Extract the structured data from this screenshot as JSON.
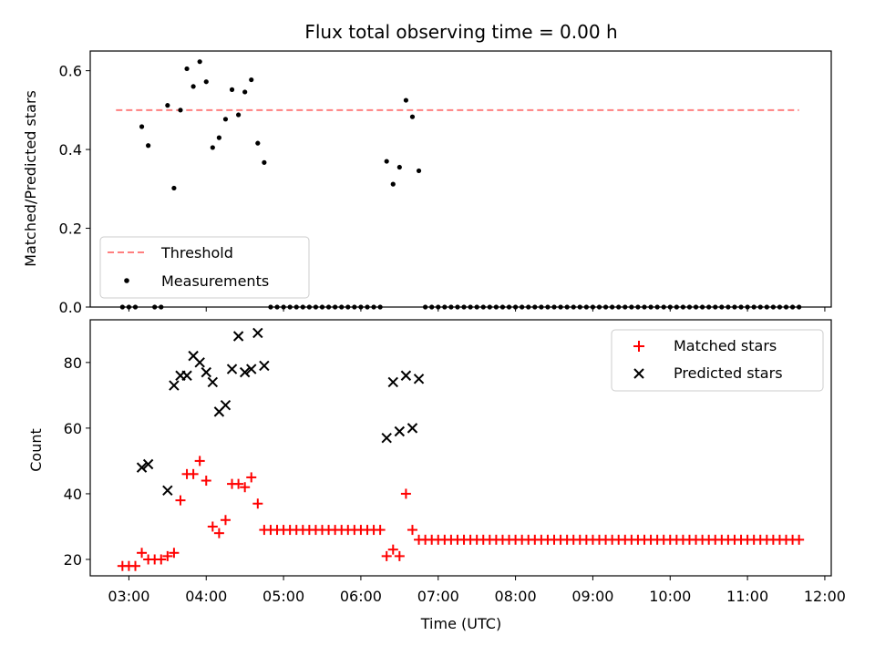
{
  "chart_data": [
    {
      "type": "scatter",
      "title": "Flux total observing time = 0.00 h",
      "ylabel": "Matched/Predicted stars",
      "xlim": [
        "02:30",
        "12:05"
      ],
      "ylim": [
        0,
        0.65
      ],
      "yticks": [
        "0.0",
        "0.2",
        "0.4",
        "0.6"
      ],
      "grid": false,
      "legend_position": "lower-left",
      "threshold": {
        "name": "Threshold",
        "value": 0.5,
        "x_start": "02:50",
        "x_end": "11:40",
        "color": "#ff7f7f",
        "style": "dashed"
      },
      "series": [
        {
          "name": "Measurements",
          "color": "#000000",
          "points": [
            [
              "02:55",
              0
            ],
            [
              "03:00",
              0
            ],
            [
              "03:05",
              0
            ],
            [
              "03:10",
              0.458
            ],
            [
              "03:15",
              0.41
            ],
            [
              "03:20",
              0
            ],
            [
              "03:25",
              0
            ],
            [
              "03:30",
              0.512
            ],
            [
              "03:35",
              0.302
            ],
            [
              "03:40",
              0.5
            ],
            [
              "03:45",
              0.605
            ],
            [
              "03:50",
              0.56
            ],
            [
              "03:55",
              0.623
            ],
            [
              "04:00",
              0.572
            ],
            [
              "04:05",
              0.405
            ],
            [
              "04:10",
              0.43
            ],
            [
              "04:15",
              0.477
            ],
            [
              "04:20",
              0.552
            ],
            [
              "04:25",
              0.488
            ],
            [
              "04:30",
              0.546
            ],
            [
              "04:35",
              0.577
            ],
            [
              "04:40",
              0.416
            ],
            [
              "04:45",
              0.367
            ],
            [
              "04:50",
              0
            ],
            [
              "04:55",
              0
            ],
            [
              "05:00",
              0
            ],
            [
              "05:05",
              0
            ],
            [
              "05:10",
              0
            ],
            [
              "05:15",
              0
            ],
            [
              "05:20",
              0
            ],
            [
              "05:25",
              0
            ],
            [
              "05:30",
              0
            ],
            [
              "05:35",
              0
            ],
            [
              "05:40",
              0
            ],
            [
              "05:45",
              0
            ],
            [
              "05:50",
              0
            ],
            [
              "05:55",
              0
            ],
            [
              "06:00",
              0
            ],
            [
              "06:05",
              0
            ],
            [
              "06:10",
              0
            ],
            [
              "06:15",
              0
            ],
            [
              "06:20",
              0.37
            ],
            [
              "06:25",
              0.312
            ],
            [
              "06:30",
              0.355
            ],
            [
              "06:35",
              0.525
            ],
            [
              "06:40",
              0.483
            ],
            [
              "06:45",
              0.346
            ],
            [
              "06:50",
              0
            ],
            [
              "06:55",
              0
            ],
            [
              "07:00",
              0
            ],
            [
              "07:05",
              0
            ],
            [
              "07:10",
              0
            ],
            [
              "07:15",
              0
            ],
            [
              "07:20",
              0
            ],
            [
              "07:25",
              0
            ],
            [
              "07:30",
              0
            ],
            [
              "07:35",
              0
            ],
            [
              "07:40",
              0
            ],
            [
              "07:45",
              0
            ],
            [
              "07:50",
              0
            ],
            [
              "07:55",
              0
            ],
            [
              "08:00",
              0
            ],
            [
              "08:05",
              0
            ],
            [
              "08:10",
              0
            ],
            [
              "08:15",
              0
            ],
            [
              "08:20",
              0
            ],
            [
              "08:25",
              0
            ],
            [
              "08:30",
              0
            ],
            [
              "08:35",
              0
            ],
            [
              "08:40",
              0
            ],
            [
              "08:45",
              0
            ],
            [
              "08:50",
              0
            ],
            [
              "08:55",
              0
            ],
            [
              "09:00",
              0
            ],
            [
              "09:05",
              0
            ],
            [
              "09:10",
              0
            ],
            [
              "09:15",
              0
            ],
            [
              "09:20",
              0
            ],
            [
              "09:25",
              0
            ],
            [
              "09:30",
              0
            ],
            [
              "09:35",
              0
            ],
            [
              "09:40",
              0
            ],
            [
              "09:45",
              0
            ],
            [
              "09:50",
              0
            ],
            [
              "09:55",
              0
            ],
            [
              "10:00",
              0
            ],
            [
              "10:05",
              0
            ],
            [
              "10:10",
              0
            ],
            [
              "10:15",
              0
            ],
            [
              "10:20",
              0
            ],
            [
              "10:25",
              0
            ],
            [
              "10:30",
              0
            ],
            [
              "10:35",
              0
            ],
            [
              "10:40",
              0
            ],
            [
              "10:45",
              0
            ],
            [
              "10:50",
              0
            ],
            [
              "10:55",
              0
            ],
            [
              "11:00",
              0
            ],
            [
              "11:05",
              0
            ],
            [
              "11:10",
              0
            ],
            [
              "11:15",
              0
            ],
            [
              "11:20",
              0
            ],
            [
              "11:25",
              0
            ],
            [
              "11:30",
              0
            ],
            [
              "11:35",
              0
            ],
            [
              "11:40",
              0
            ]
          ]
        }
      ]
    },
    {
      "type": "scatter",
      "xlabel": "Time (UTC)",
      "ylabel": "Count",
      "xlim": [
        "02:30",
        "12:05"
      ],
      "ylim": [
        15,
        93
      ],
      "xticks": [
        "03:00",
        "04:00",
        "05:00",
        "06:00",
        "07:00",
        "08:00",
        "09:00",
        "10:00",
        "11:00",
        "12:00"
      ],
      "yticks": [
        "20",
        "40",
        "60",
        "80"
      ],
      "grid": false,
      "legend_position": "upper-right",
      "series": [
        {
          "name": "Matched stars",
          "color": "#ff0000",
          "marker": "+",
          "points": [
            [
              "02:55",
              18
            ],
            [
              "03:00",
              18
            ],
            [
              "03:05",
              18
            ],
            [
              "03:10",
              22
            ],
            [
              "03:15",
              20
            ],
            [
              "03:20",
              20
            ],
            [
              "03:25",
              20
            ],
            [
              "03:30",
              21
            ],
            [
              "03:35",
              22
            ],
            [
              "03:40",
              38
            ],
            [
              "03:45",
              46
            ],
            [
              "03:50",
              46
            ],
            [
              "03:55",
              50
            ],
            [
              "04:00",
              44
            ],
            [
              "04:05",
              30
            ],
            [
              "04:10",
              28
            ],
            [
              "04:15",
              32
            ],
            [
              "04:20",
              43
            ],
            [
              "04:25",
              43
            ],
            [
              "04:30",
              42
            ],
            [
              "04:35",
              45
            ],
            [
              "04:40",
              37
            ],
            [
              "04:45",
              29
            ],
            [
              "04:50",
              29
            ],
            [
              "04:55",
              29
            ],
            [
              "05:00",
              29
            ],
            [
              "05:05",
              29
            ],
            [
              "05:10",
              29
            ],
            [
              "05:15",
              29
            ],
            [
              "05:20",
              29
            ],
            [
              "05:25",
              29
            ],
            [
              "05:30",
              29
            ],
            [
              "05:35",
              29
            ],
            [
              "05:40",
              29
            ],
            [
              "05:45",
              29
            ],
            [
              "05:50",
              29
            ],
            [
              "05:55",
              29
            ],
            [
              "06:00",
              29
            ],
            [
              "06:05",
              29
            ],
            [
              "06:10",
              29
            ],
            [
              "06:15",
              29
            ],
            [
              "06:20",
              21
            ],
            [
              "06:25",
              23
            ],
            [
              "06:30",
              21
            ],
            [
              "06:35",
              40
            ],
            [
              "06:40",
              29
            ],
            [
              "06:45",
              26
            ],
            [
              "06:50",
              26
            ],
            [
              "06:55",
              26
            ],
            [
              "07:00",
              26
            ],
            [
              "07:05",
              26
            ],
            [
              "07:10",
              26
            ],
            [
              "07:15",
              26
            ],
            [
              "07:20",
              26
            ],
            [
              "07:25",
              26
            ],
            [
              "07:30",
              26
            ],
            [
              "07:35",
              26
            ],
            [
              "07:40",
              26
            ],
            [
              "07:45",
              26
            ],
            [
              "07:50",
              26
            ],
            [
              "07:55",
              26
            ],
            [
              "08:00",
              26
            ],
            [
              "08:05",
              26
            ],
            [
              "08:10",
              26
            ],
            [
              "08:15",
              26
            ],
            [
              "08:20",
              26
            ],
            [
              "08:25",
              26
            ],
            [
              "08:30",
              26
            ],
            [
              "08:35",
              26
            ],
            [
              "08:40",
              26
            ],
            [
              "08:45",
              26
            ],
            [
              "08:50",
              26
            ],
            [
              "08:55",
              26
            ],
            [
              "09:00",
              26
            ],
            [
              "09:05",
              26
            ],
            [
              "09:10",
              26
            ],
            [
              "09:15",
              26
            ],
            [
              "09:20",
              26
            ],
            [
              "09:25",
              26
            ],
            [
              "09:30",
              26
            ],
            [
              "09:35",
              26
            ],
            [
              "09:40",
              26
            ],
            [
              "09:45",
              26
            ],
            [
              "09:50",
              26
            ],
            [
              "09:55",
              26
            ],
            [
              "10:00",
              26
            ],
            [
              "10:05",
              26
            ],
            [
              "10:10",
              26
            ],
            [
              "10:15",
              26
            ],
            [
              "10:20",
              26
            ],
            [
              "10:25",
              26
            ],
            [
              "10:30",
              26
            ],
            [
              "10:35",
              26
            ],
            [
              "10:40",
              26
            ],
            [
              "10:45",
              26
            ],
            [
              "10:50",
              26
            ],
            [
              "10:55",
              26
            ],
            [
              "11:00",
              26
            ],
            [
              "11:05",
              26
            ],
            [
              "11:10",
              26
            ],
            [
              "11:15",
              26
            ],
            [
              "11:20",
              26
            ],
            [
              "11:25",
              26
            ],
            [
              "11:30",
              26
            ],
            [
              "11:35",
              26
            ],
            [
              "11:40",
              26
            ]
          ]
        },
        {
          "name": "Predicted stars",
          "color": "#000000",
          "marker": "x",
          "points": [
            [
              "03:10",
              48
            ],
            [
              "03:15",
              49
            ],
            [
              "03:30",
              41
            ],
            [
              "03:35",
              73
            ],
            [
              "03:40",
              76
            ],
            [
              "03:45",
              76
            ],
            [
              "03:50",
              82
            ],
            [
              "03:55",
              80
            ],
            [
              "04:00",
              77
            ],
            [
              "04:05",
              74
            ],
            [
              "04:10",
              65
            ],
            [
              "04:15",
              67
            ],
            [
              "04:20",
              78
            ],
            [
              "04:25",
              88
            ],
            [
              "04:30",
              77
            ],
            [
              "04:35",
              78
            ],
            [
              "04:40",
              89
            ],
            [
              "04:45",
              79
            ],
            [
              "06:20",
              57
            ],
            [
              "06:25",
              74
            ],
            [
              "06:30",
              59
            ],
            [
              "06:35",
              76
            ],
            [
              "06:40",
              60
            ],
            [
              "06:45",
              75
            ]
          ]
        }
      ]
    }
  ]
}
